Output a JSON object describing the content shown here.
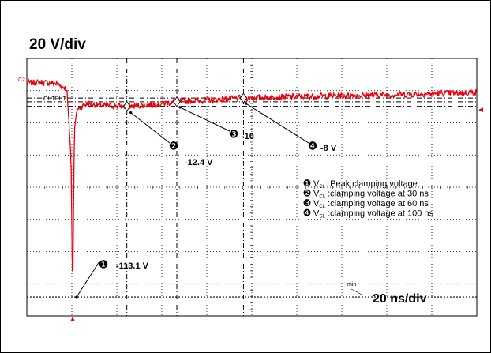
{
  "chart_data": {
    "type": "line",
    "vertical_scale": "20 V/div",
    "horizontal_scale": "20 ns/div",
    "channel_label": "C2",
    "output_label": "OUTPUT",
    "min_label": "min",
    "grid": true,
    "trace_color": "#e8000b",
    "x_unit": "ns",
    "y_unit": "V",
    "xlim": [
      -30,
      240
    ],
    "ylim": [
      -123.1,
      12.9
    ],
    "series": [
      {
        "points": [
          [
            -30,
            0
          ],
          [
            -20,
            0.3
          ],
          [
            -12,
            -0.5
          ],
          [
            -6,
            -3
          ],
          [
            -3.5,
            -40
          ],
          [
            -2.5,
            -113.1
          ],
          [
            -1.5,
            -25
          ],
          [
            0,
            -14
          ],
          [
            6,
            -11
          ],
          [
            15,
            -12
          ],
          [
            30,
            -12.4
          ],
          [
            45,
            -11.5
          ],
          [
            60,
            -10
          ],
          [
            80,
            -9
          ],
          [
            100,
            -8
          ],
          [
            140,
            -7
          ],
          [
            180,
            -6.5
          ],
          [
            220,
            -5.5
          ],
          [
            240,
            -5
          ]
        ]
      }
    ],
    "markers": [
      {
        "num": "❶",
        "label": "-113.1 V",
        "t_ns": -2.5,
        "value": -113.1
      },
      {
        "num": "❷",
        "label": "-12.4 V",
        "t_ns": 30,
        "value": -12.4
      },
      {
        "num": "❸",
        "label": "-10",
        "t_ns": 60,
        "value": -10
      },
      {
        "num": "❹",
        "label": "-8 V",
        "t_ns": 100,
        "value": -8
      }
    ],
    "legend": [
      {
        "num": "❶",
        "sub": "CL",
        "text": ": Peak clamping  voltage"
      },
      {
        "num": "❷",
        "sub": "CL",
        "text": " :clamping voltage at 30 ns"
      },
      {
        "num": "❸",
        "sub": "CL",
        "text": " :clamping voltage at 60 ns"
      },
      {
        "num": "❹",
        "sub": "CL",
        "text": " :clamping voltage at 100 ns"
      }
    ],
    "legend_symbol": "V"
  }
}
